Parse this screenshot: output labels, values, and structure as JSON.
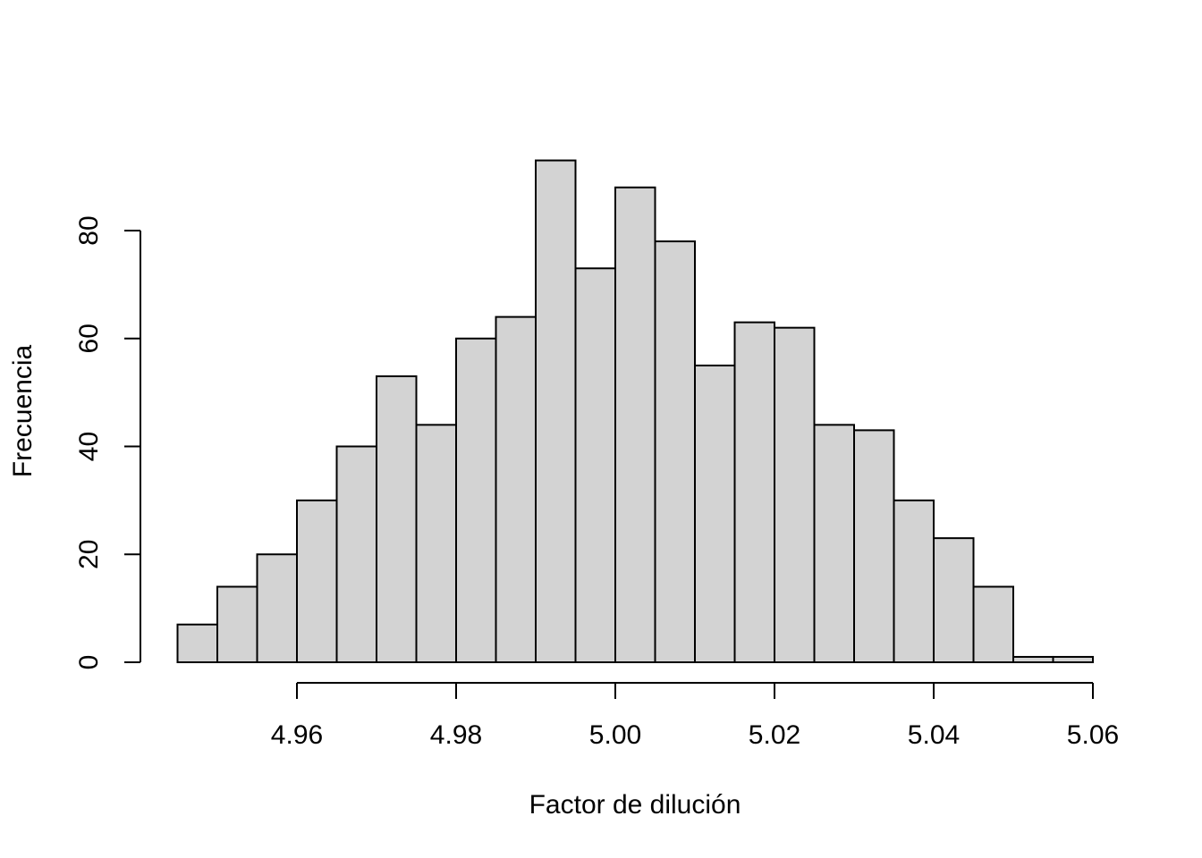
{
  "chart_data": {
    "type": "bar",
    "subtype": "histogram",
    "xlabel": "Factor de dilución",
    "ylabel": "Frecuencia",
    "bin_width": 0.005,
    "bins": [
      {
        "start": 4.945,
        "end": 4.95,
        "count": 7
      },
      {
        "start": 4.95,
        "end": 4.955,
        "count": 14
      },
      {
        "start": 4.955,
        "end": 4.96,
        "count": 20
      },
      {
        "start": 4.96,
        "end": 4.965,
        "count": 30
      },
      {
        "start": 4.965,
        "end": 4.97,
        "count": 40
      },
      {
        "start": 4.97,
        "end": 4.975,
        "count": 53
      },
      {
        "start": 4.975,
        "end": 4.98,
        "count": 44
      },
      {
        "start": 4.98,
        "end": 4.985,
        "count": 60
      },
      {
        "start": 4.985,
        "end": 4.99,
        "count": 64
      },
      {
        "start": 4.99,
        "end": 4.995,
        "count": 93
      },
      {
        "start": 4.995,
        "end": 5.0,
        "count": 73
      },
      {
        "start": 5.0,
        "end": 5.005,
        "count": 88
      },
      {
        "start": 5.005,
        "end": 5.01,
        "count": 78
      },
      {
        "start": 5.01,
        "end": 5.015,
        "count": 55
      },
      {
        "start": 5.015,
        "end": 5.02,
        "count": 63
      },
      {
        "start": 5.02,
        "end": 5.025,
        "count": 62
      },
      {
        "start": 5.025,
        "end": 5.03,
        "count": 44
      },
      {
        "start": 5.03,
        "end": 5.035,
        "count": 43
      },
      {
        "start": 5.035,
        "end": 5.04,
        "count": 30
      },
      {
        "start": 5.04,
        "end": 5.045,
        "count": 23
      },
      {
        "start": 5.045,
        "end": 5.05,
        "count": 14
      },
      {
        "start": 5.05,
        "end": 5.055,
        "count": 1
      },
      {
        "start": 5.055,
        "end": 5.06,
        "count": 1
      }
    ],
    "x_ticks": [
      "4.96",
      "4.98",
      "5.00",
      "5.02",
      "5.04",
      "5.06"
    ],
    "y_ticks": [
      "0",
      "20",
      "40",
      "60",
      "80"
    ],
    "bar_color": "#d3d3d3",
    "grid": false,
    "legend": "none"
  }
}
